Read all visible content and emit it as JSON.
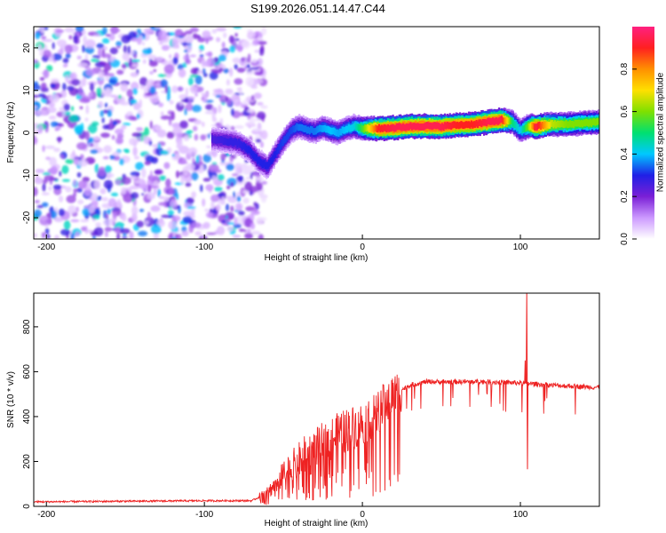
{
  "title": "S199.2026.051.14.47.C44",
  "chart_data": [
    {
      "type": "heatmap",
      "name": "spectrogram",
      "xlabel": "Height of straight line (km)",
      "ylabel": "Frequency (Hz)",
      "xlim": [
        -208,
        150
      ],
      "ylim": [
        -25,
        25
      ],
      "xticks": [
        -200,
        -100,
        0,
        100
      ],
      "yticks": [
        -20,
        -10,
        0,
        10,
        20
      ],
      "colorbar": {
        "label": "Normalized spectral amplitude",
        "range": [
          0.0,
          1.0
        ],
        "ticks": [
          "0.0",
          "0.2",
          "0.4",
          "0.6",
          "0.8"
        ],
        "colors": [
          "#ffffff",
          "#cc99ff",
          "#7a1fd6",
          "#2020e6",
          "#00c8ff",
          "#00e070",
          "#7fe000",
          "#ffe000",
          "#ff9000",
          "#ff2020",
          "#ff2080"
        ]
      },
      "noise_region_x": [
        -208,
        -70
      ],
      "ridge": {
        "x": [
          -95,
          -85,
          -78,
          -72,
          -66,
          -60,
          -55,
          -50,
          -45,
          -40,
          -35,
          -30,
          -25,
          -20,
          -15,
          -10,
          -5,
          0,
          10,
          20,
          30,
          40,
          50,
          60,
          70,
          80,
          88,
          95,
          100,
          105,
          110,
          120,
          130,
          140,
          150
        ],
        "freq": [
          -1.5,
          -2.0,
          -2.5,
          -4.0,
          -6.5,
          -8.0,
          -5.0,
          -2.0,
          0.5,
          1.5,
          0.8,
          0.3,
          1.2,
          0.5,
          0.0,
          1.0,
          1.5,
          1.0,
          1.0,
          1.2,
          1.5,
          1.6,
          1.5,
          1.8,
          2.0,
          2.5,
          3.0,
          2.5,
          0.5,
          1.5,
          1.5,
          2.0,
          2.0,
          2.3,
          2.5
        ],
        "amplitude": [
          0.25,
          0.28,
          0.28,
          0.3,
          0.3,
          0.3,
          0.3,
          0.32,
          0.32,
          0.35,
          0.35,
          0.35,
          0.38,
          0.4,
          0.38,
          0.4,
          0.42,
          0.55,
          0.9,
          0.95,
          0.95,
          0.95,
          0.95,
          0.9,
          0.9,
          0.95,
          0.95,
          0.5,
          0.4,
          0.6,
          0.95,
          0.65,
          0.6,
          0.6,
          0.6
        ]
      }
    },
    {
      "type": "line",
      "name": "snr",
      "xlabel": "Height of straight line (km)",
      "ylabel": "SNR (10 * v/v)",
      "xlim": [
        -208,
        150
      ],
      "ylim": [
        0,
        950
      ],
      "xticks": [
        -200,
        -100,
        0,
        100
      ],
      "yticks": [
        0,
        200,
        400,
        600,
        800
      ],
      "color": "#ee2222",
      "trend": {
        "x": [
          -208,
          -100,
          -70,
          -60,
          -50,
          -40,
          -30,
          -20,
          -10,
          0,
          10,
          20,
          30,
          40,
          60,
          80,
          100,
          120,
          150
        ],
        "y": [
          20,
          25,
          25,
          60,
          140,
          200,
          250,
          300,
          340,
          370,
          420,
          500,
          540,
          555,
          555,
          555,
          550,
          540,
          530
        ]
      },
      "spikes": [
        {
          "x": 104,
          "y": 950
        },
        {
          "x": 104.5,
          "y": 165
        },
        {
          "x": 103,
          "y": 650
        }
      ]
    }
  ]
}
